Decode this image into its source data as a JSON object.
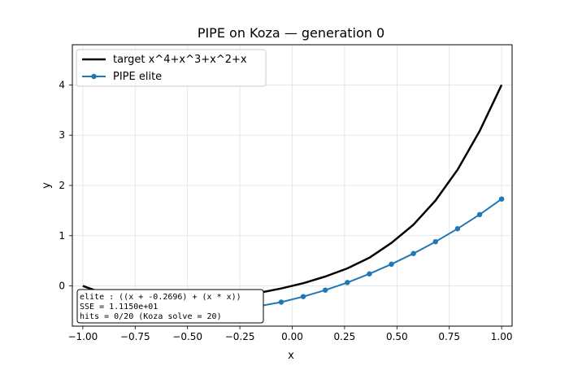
{
  "chart_data": {
    "type": "line",
    "title": "PIPE on Koza  —  generation 0",
    "xlabel": "x",
    "ylabel": "y",
    "xlim": [
      -1.05,
      1.05
    ],
    "ylim": [
      -0.8,
      4.8
    ],
    "xticks": [
      -1.0,
      -0.75,
      -0.5,
      -0.25,
      0.0,
      0.25,
      0.5,
      0.75,
      1.0
    ],
    "xtick_labels": [
      "−1.00",
      "−0.75",
      "−0.50",
      "−0.25",
      "0.00",
      "0.25",
      "0.50",
      "0.75",
      "1.00"
    ],
    "yticks": [
      0,
      1,
      2,
      3,
      4
    ],
    "ytick_labels": [
      "0",
      "1",
      "2",
      "3",
      "4"
    ],
    "grid": true,
    "legend_position": "top-left",
    "series": [
      {
        "name": "target  x^4+x^3+x^2+x",
        "color": "#000000",
        "markers": false,
        "x": [
          -1.0,
          -0.8947,
          -0.7895,
          -0.6842,
          -0.5789,
          -0.4737,
          -0.3684,
          -0.2632,
          -0.1579,
          -0.0526,
          0.0526,
          0.1579,
          0.2632,
          0.3684,
          0.4737,
          0.5789,
          0.6842,
          0.7895,
          0.8947,
          1.0
        ],
        "y": [
          0.0,
          -0.157,
          -0.287,
          -0.395,
          -0.476,
          -0.506,
          -0.452,
          -0.277,
          -0.137,
          -0.05,
          0.055,
          0.187,
          0.349,
          0.561,
          0.856,
          1.219,
          1.701,
          2.313,
          3.079,
          4.0
        ]
      },
      {
        "name": "PIPE elite",
        "color": "#1f77b4",
        "markers": true,
        "x": [
          -1.0,
          -0.8947,
          -0.7895,
          -0.6842,
          -0.5789,
          -0.4737,
          -0.3684,
          -0.2632,
          -0.1579,
          -0.0526,
          0.0526,
          0.1579,
          0.2632,
          0.3684,
          0.4737,
          0.5789,
          0.6842,
          0.7895,
          0.8947,
          1.0
        ],
        "y": [
          -0.27,
          -0.351,
          -0.427,
          -0.478,
          -0.518,
          -0.543,
          -0.528,
          -0.496,
          -0.402,
          -0.322,
          -0.212,
          -0.083,
          0.068,
          0.24,
          0.433,
          0.645,
          0.88,
          1.139,
          1.42,
          1.73
        ]
      }
    ],
    "annotation": [
      "elite : ((x + -0.2696) + (x * x))",
      "SSE   = 1.1150e+01",
      "hits  = 0/20  (Koza solve = 20)"
    ]
  }
}
